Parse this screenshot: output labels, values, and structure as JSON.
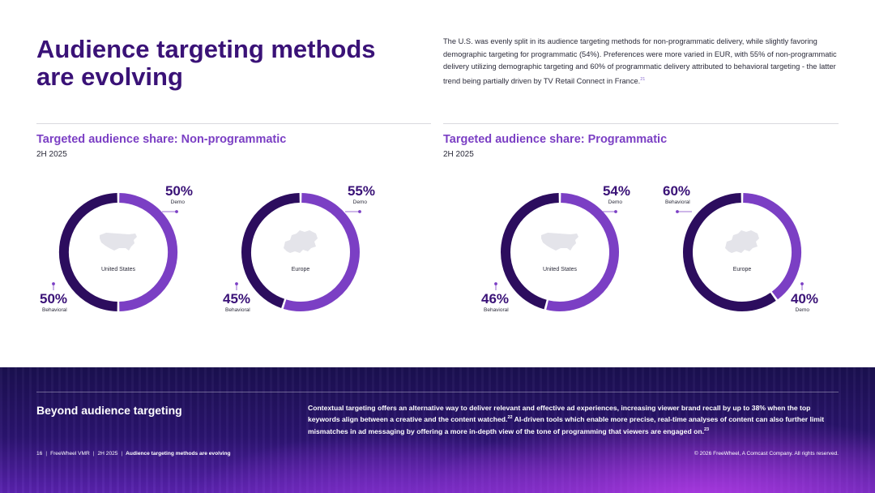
{
  "title": "Audience targeting methods are evolving",
  "intro": {
    "text": "The U.S. was evenly split in its audience targeting methods for non-programmatic delivery, while slightly favoring demographic targeting for programmatic (54%). Preferences were more varied in EUR, with 55% of non-programmatic delivery utilizing demographic targeting and 60% of programmatic delivery attributed to behavioral targeting - the latter trend being partially driven by TV Retail Connect in France.",
    "footnote": "21"
  },
  "colors": {
    "behavioral": "#2c0d5e",
    "demo": "#7b3fc4",
    "title": "#3a1277",
    "map": "#e4e4ea"
  },
  "panels": [
    {
      "title": "Targeted audience share: Non-programmatic",
      "subtitle": "2H 2025"
    },
    {
      "title": "Targeted audience share: Programmatic",
      "subtitle": "2H 2025"
    }
  ],
  "chart_data": [
    {
      "type": "pie",
      "title": "Non-programmatic — United States",
      "center_label": "United States",
      "categories": [
        "Demo",
        "Behavioral"
      ],
      "values": [
        50,
        50
      ],
      "labels": [
        "50%",
        "50%"
      ]
    },
    {
      "type": "pie",
      "title": "Non-programmatic — Europe",
      "center_label": "Europe",
      "categories": [
        "Demo",
        "Behavioral"
      ],
      "values": [
        55,
        45
      ],
      "labels": [
        "55%",
        "45%"
      ]
    },
    {
      "type": "pie",
      "title": "Programmatic — United States",
      "center_label": "United States",
      "categories": [
        "Demo",
        "Behavioral"
      ],
      "values": [
        54,
        46
      ],
      "labels": [
        "54%",
        "46%"
      ]
    },
    {
      "type": "pie",
      "title": "Programmatic — Europe",
      "center_label": "Europe",
      "categories": [
        "Demo",
        "Behavioral"
      ],
      "values": [
        40,
        60
      ],
      "labels": [
        "40%",
        "60%"
      ]
    }
  ],
  "footer": {
    "heading": "Beyond audience targeting",
    "text_part1": "Contextual targeting offers an alternative way to deliver relevant and effective ad experiences, increasing viewer brand recall by up to 38% when the top keywords align between a creative and the content watched.",
    "footnote1": "22",
    "text_part2": " AI-driven tools which enable more precise, real-time analyses of content can also further limit mismatches in ad messaging by offering a more in-depth view of the tone of programming that viewers are engaged on.",
    "footnote2": "23",
    "page_number": "16",
    "report": "FreeWheel VMR",
    "period": "2H 2025",
    "section": "Audience targeting methods are evolving",
    "copyright": "© 2026 FreeWheel, A Comcast Company. All rights reserved."
  }
}
